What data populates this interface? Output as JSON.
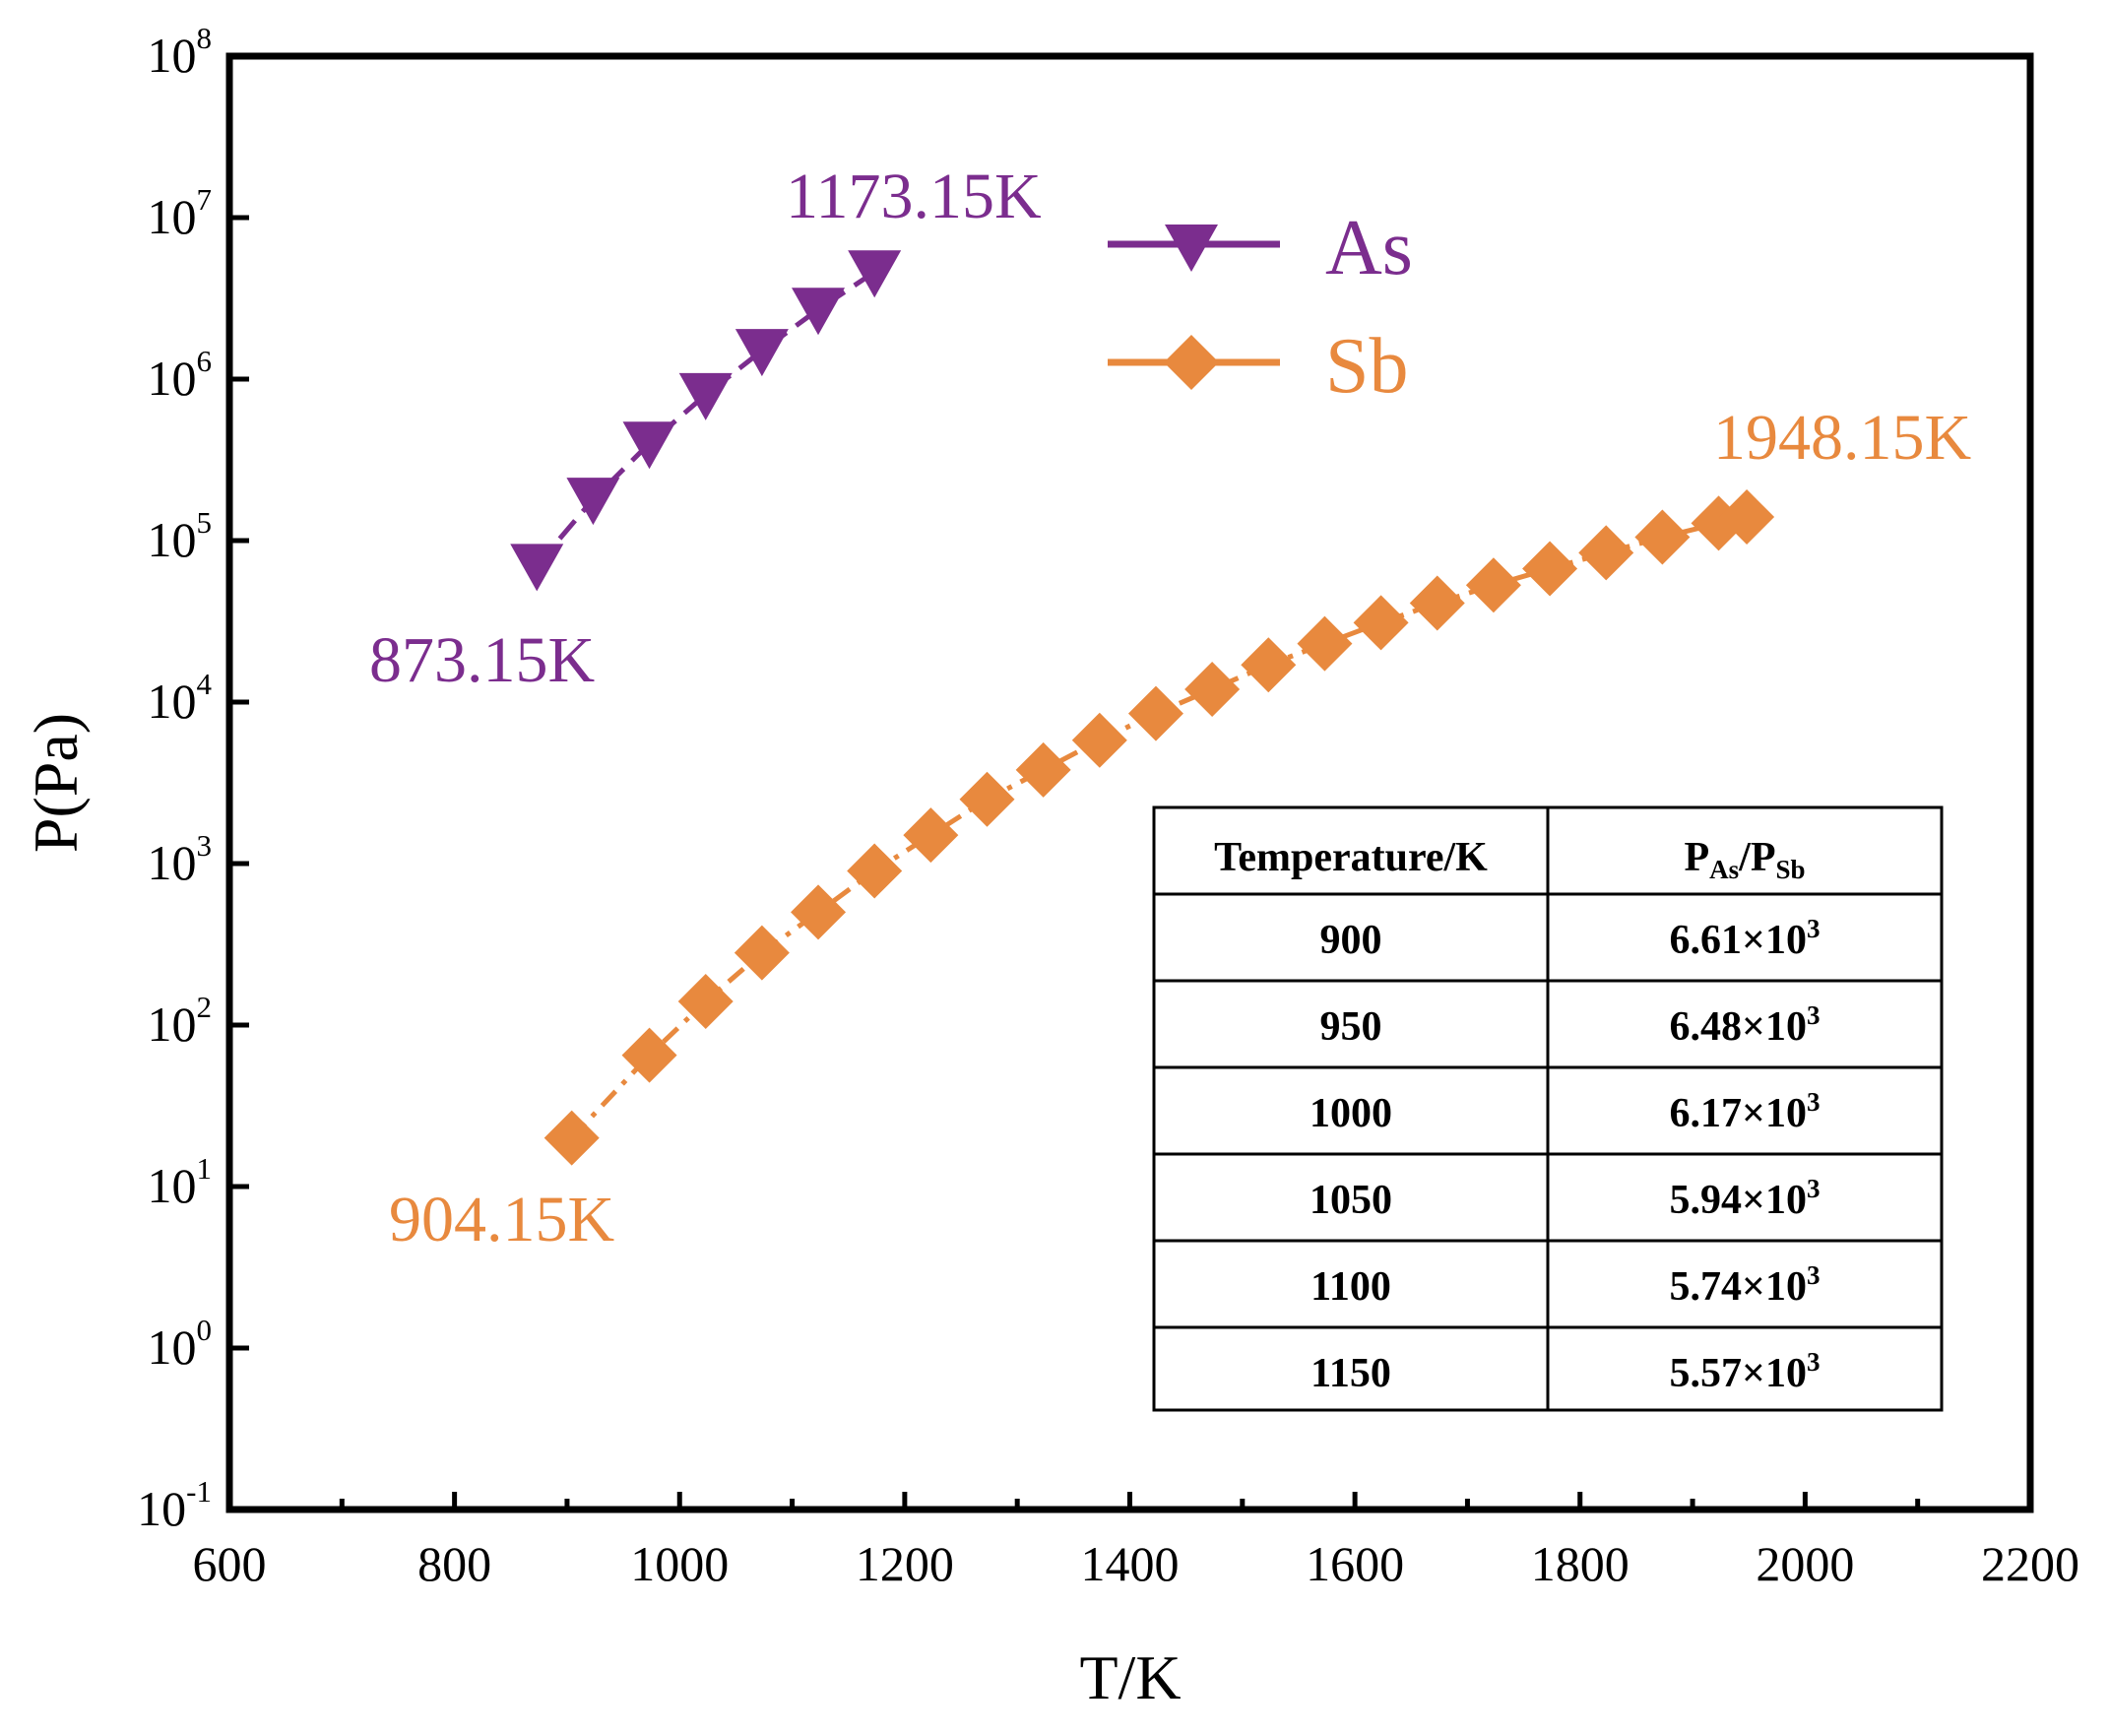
{
  "chart_data": {
    "type": "line",
    "title": "",
    "xlabel": "T/K",
    "ylabel": "P(Pa)",
    "xlim": [
      600,
      2200
    ],
    "x_major_ticks": [
      600,
      800,
      1000,
      1200,
      1400,
      1600,
      1800,
      2000,
      2200
    ],
    "x_minor_ticks": [
      700,
      900,
      1100,
      1300,
      1500,
      1700,
      1900,
      2100
    ],
    "yscale": "log",
    "ylim_exponents": [
      -1,
      8
    ],
    "y_tick_base": "10",
    "y_tick_exponents": [
      "8",
      "7",
      "6",
      "5",
      "4",
      "3",
      "2",
      "1",
      "0",
      "-1"
    ],
    "legend_position": "upper-middle",
    "series": [
      {
        "name": "As",
        "color": "#7b2d8e",
        "marker": "triangle-down",
        "line_style": "dashed",
        "x": [
          873.15,
          923.15,
          973.15,
          1023.15,
          1073.15,
          1123.15,
          1173.15
        ],
        "y": [
          70000,
          180000,
          400000,
          800000,
          1500000,
          2700000,
          4600000
        ]
      },
      {
        "name": "Sb",
        "color": "#e8893e",
        "marker": "diamond",
        "line_style": "dash-dot",
        "x": [
          904.15,
          973.15,
          1023.15,
          1073.15,
          1123.15,
          1173.15,
          1223.15,
          1273.15,
          1323.15,
          1373.15,
          1423.15,
          1473.15,
          1523.15,
          1573.15,
          1623.15,
          1673.15,
          1723.15,
          1773.15,
          1823.15,
          1873.15,
          1923.15,
          1948.15
        ],
        "y": [
          20,
          65,
          140,
          280,
          500,
          900,
          1500,
          2500,
          3800,
          5800,
          8500,
          12000,
          17000,
          23000,
          31000,
          41000,
          53000,
          67000,
          84000,
          105000,
          128000,
          140000
        ]
      }
    ],
    "annotations": [
      {
        "text": "1173.15K",
        "series": "As",
        "x": 1173.15
      },
      {
        "text": "873.15K",
        "series": "As",
        "x": 873.15
      },
      {
        "text": "1948.15K",
        "series": "Sb",
        "x": 1948.15
      },
      {
        "text": "904.15K",
        "series": "Sb",
        "x": 904.15
      }
    ],
    "table": {
      "header_temperature": "Temperature/K",
      "header_ratio": {
        "p1": "P",
        "s1": "As",
        "slash": "/",
        "p2": "P",
        "s2": "Sb"
      },
      "rows": [
        {
          "temperature": "900",
          "mantissa": "6.61×10",
          "exponent": "3"
        },
        {
          "temperature": "950",
          "mantissa": "6.48×10",
          "exponent": "3"
        },
        {
          "temperature": "1000",
          "mantissa": "6.17×10",
          "exponent": "3"
        },
        {
          "temperature": "1050",
          "mantissa": "5.94×10",
          "exponent": "3"
        },
        {
          "temperature": "1100",
          "mantissa": "5.74×10",
          "exponent": "3"
        },
        {
          "temperature": "1150",
          "mantissa": "5.57×10",
          "exponent": "3"
        }
      ]
    }
  }
}
